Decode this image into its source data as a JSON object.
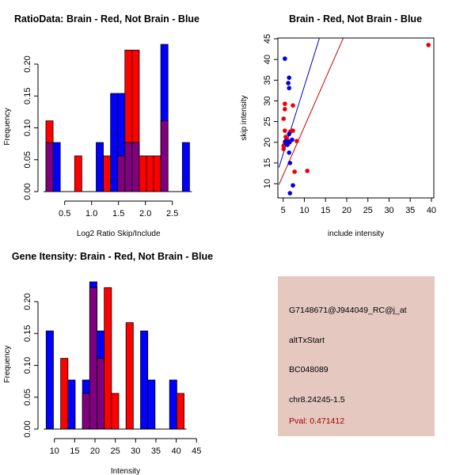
{
  "chart_data": [
    {
      "id": "ratio_hist",
      "type": "bar",
      "title": "RatioData: Brain - Red, Not Brain - Blue",
      "xlabel": "Log2 Ratio Skip/Include",
      "ylabel": "Frequency",
      "bin_start": 0.15,
      "bin_width": 0.1333,
      "xticks": [
        0.5,
        1.0,
        1.5,
        2.0,
        2.5
      ],
      "xtick_labels": [
        "0.5",
        "1.0",
        "1.5",
        "2.0",
        "2.5"
      ],
      "yticks": [
        0.0,
        0.05,
        0.1,
        0.15,
        0.2
      ],
      "ytick_labels": [
        "0.00",
        "0.05",
        "0.10",
        "0.15",
        "0.20"
      ],
      "series": [
        {
          "name": "Brain",
          "color": "#ff0000",
          "values": [
            0.111,
            0,
            0,
            0,
            0.056,
            0,
            0,
            0,
            0.056,
            0,
            0.056,
            0.222,
            0.222,
            0.056,
            0.056,
            0.056,
            0.111,
            0,
            0,
            0
          ]
        },
        {
          "name": "Not Brain",
          "color": "#0000ff",
          "values": [
            0.077,
            0.077,
            0,
            0,
            0,
            0,
            0,
            0.077,
            0,
            0.154,
            0.154,
            0.077,
            0.077,
            0,
            0,
            0,
            0.231,
            0,
            0,
            0.077
          ]
        }
      ],
      "overlap_color": "#800080"
    },
    {
      "id": "intensity_scatter",
      "type": "scatter",
      "title": "Brain - Red, Not Brain - Blue",
      "xlabel": "include intensity",
      "ylabel": "skip intensity",
      "xlim": [
        4,
        40.5
      ],
      "ylim": [
        6.5,
        45
      ],
      "xticks": [
        5,
        10,
        15,
        20,
        25,
        30,
        35,
        40
      ],
      "yticks": [
        10,
        15,
        20,
        25,
        30,
        35,
        40,
        45
      ],
      "series": [
        {
          "name": "Brain",
          "color": "#ee0000",
          "points": [
            [
              39.3,
              43.5
            ],
            [
              5.4,
              29.3
            ],
            [
              5.4,
              28.0
            ],
            [
              7.3,
              28.9
            ],
            [
              5.1,
              25.7
            ],
            [
              5.4,
              22.8
            ],
            [
              7.3,
              22.8
            ],
            [
              6.7,
              22.6
            ],
            [
              5.6,
              21.3
            ],
            [
              5.8,
              20.7
            ],
            [
              5.1,
              19.2
            ],
            [
              5.1,
              18.4
            ],
            [
              8.2,
              20.3
            ],
            [
              7.7,
              12.9
            ],
            [
              10.7,
              13.1
            ],
            [
              5.4,
              20.1
            ],
            [
              6.4,
              20.3
            ]
          ],
          "fit": {
            "slope": 2.33,
            "intercept": 0.45,
            "color": "#cc0000"
          }
        },
        {
          "name": "Not Brain",
          "color": "#0000dd",
          "points": [
            [
              5.4,
              40.2
            ],
            [
              6.4,
              35.6
            ],
            [
              6.2,
              34.3
            ],
            [
              6.4,
              33.1
            ],
            [
              6.4,
              22.0
            ],
            [
              7.1,
              20.6
            ],
            [
              5.6,
              19.8
            ],
            [
              6.0,
              19.4
            ],
            [
              6.5,
              20.0
            ],
            [
              6.4,
              17.5
            ],
            [
              6.6,
              15.0
            ],
            [
              7.3,
              9.6
            ],
            [
              6.6,
              7.7
            ],
            [
              5.6,
              20.3
            ]
          ],
          "fit": {
            "slope": 3.27,
            "intercept": 0.84,
            "color": "#0000cc"
          }
        }
      ]
    },
    {
      "id": "gene_hist",
      "type": "bar",
      "title": "Gene Itensity: Brain - Red, Not Brain - Blue",
      "xlabel": "Intensity",
      "ylabel": "Frequency",
      "bin_start": 8.0,
      "bin_width": 1.786,
      "xticks": [
        10,
        15,
        20,
        25,
        30,
        35,
        40,
        45
      ],
      "xtick_labels": [
        "10",
        "15",
        "20",
        "25",
        "30",
        "35",
        "40",
        "45"
      ],
      "yticks": [
        0.0,
        0.05,
        0.1,
        0.15,
        0.2
      ],
      "ytick_labels": [
        "0.00",
        "0.05",
        "0.10",
        "0.15",
        "0.20"
      ],
      "series": [
        {
          "name": "Brain",
          "color": "#ff0000",
          "values": [
            0,
            0,
            0.111,
            0,
            0,
            0.056,
            0.222,
            0.111,
            0.222,
            0.056,
            0,
            0.167,
            0,
            0,
            0,
            0,
            0,
            0,
            0.056
          ]
        },
        {
          "name": "Not Brain",
          "color": "#0000ff",
          "values": [
            0.154,
            0,
            0,
            0.077,
            0,
            0.077,
            0.231,
            0.154,
            0,
            0,
            0,
            0,
            0,
            0.154,
            0.077,
            0,
            0,
            0.077,
            0
          ]
        }
      ],
      "overlap_color": "#800080"
    }
  ],
  "info": {
    "probe_id": "G7148671@J944049_RC@j_at",
    "event_type": "altTxStart",
    "accession": "BC048089",
    "location": "chr8.24245-1.5",
    "pval": "Pval: 0.471412"
  }
}
